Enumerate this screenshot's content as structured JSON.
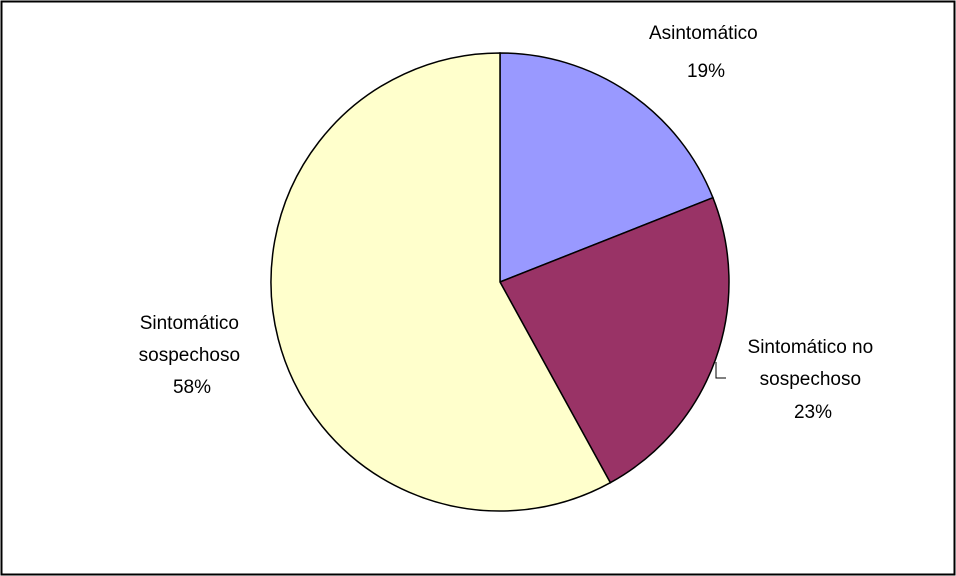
{
  "chart_data": {
    "type": "pie",
    "title": "",
    "slices": [
      {
        "label_lines": [
          "Asintomático"
        ],
        "value": 19,
        "value_text": "19%",
        "color": "#9999FF"
      },
      {
        "label_lines": [
          "Sintomático no",
          "sospechoso"
        ],
        "value": 23,
        "value_text": "23%",
        "color": "#993366"
      },
      {
        "label_lines": [
          "Sintomático",
          "sospechoso"
        ],
        "value": 58,
        "value_text": "58%",
        "color": "#FFFFCC"
      }
    ],
    "start_angle_deg": 0,
    "direction": "clockwise",
    "legend": "none"
  }
}
